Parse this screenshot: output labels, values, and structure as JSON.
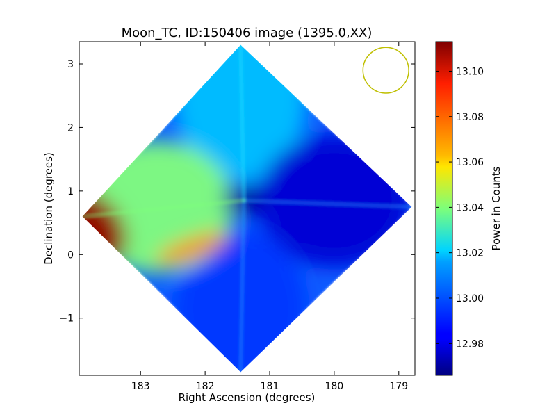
{
  "chart_data": {
    "type": "heatmap",
    "title": "Moon_TC, ID:150406 image (1395.0,XX)",
    "xlabel": "Right Ascension (degrees)",
    "ylabel": "Declination (degrees)",
    "xlim": [
      183.95,
      178.75
    ],
    "ylim": [
      -1.9,
      3.35
    ],
    "x_ticks": [
      183,
      182,
      181,
      180,
      179
    ],
    "x_tick_labels": [
      "183",
      "182",
      "181",
      "180",
      "179"
    ],
    "y_ticks": [
      -1,
      0,
      1,
      2,
      3
    ],
    "y_tick_labels": [
      "−1",
      "0",
      "1",
      "2",
      "3"
    ],
    "footprint_corners": [
      [
        181.45,
        3.3
      ],
      [
        178.8,
        0.75
      ],
      [
        181.45,
        -1.85
      ],
      [
        183.9,
        0.6
      ]
    ],
    "beam_circle": {
      "x": 179.2,
      "y": 2.9,
      "r": 0.36,
      "color": "#bfbf00"
    },
    "colorbar": {
      "label": "Power in Counts",
      "min": 12.966,
      "max": 13.113,
      "ticks": [
        12.98,
        13.0,
        13.02,
        13.04,
        13.06,
        13.08,
        13.1
      ],
      "tick_labels": [
        "12.98",
        "13.00",
        "13.02",
        "13.04",
        "13.06",
        "13.08",
        "13.10"
      ],
      "colormap": "jet"
    },
    "regions": [
      {
        "name": "top-lobe",
        "x": 181.45,
        "y": 2.45,
        "value": 13.012
      },
      {
        "name": "right-lobe",
        "x": 180.0,
        "y": 0.85,
        "value": 12.978
      },
      {
        "name": "bottom-lobe",
        "x": 181.45,
        "y": -0.85,
        "value": 12.992
      },
      {
        "name": "left-lobe",
        "x": 182.75,
        "y": 0.75,
        "value": 13.04
      },
      {
        "name": "left-edge-peak",
        "x": 183.75,
        "y": 0.45,
        "value": 13.11
      },
      {
        "name": "centre-hole",
        "x": 181.4,
        "y": 0.85,
        "value": 12.97
      },
      {
        "name": "ridge-feature",
        "x": 182.2,
        "y": 0.1,
        "value": 13.075
      }
    ]
  }
}
